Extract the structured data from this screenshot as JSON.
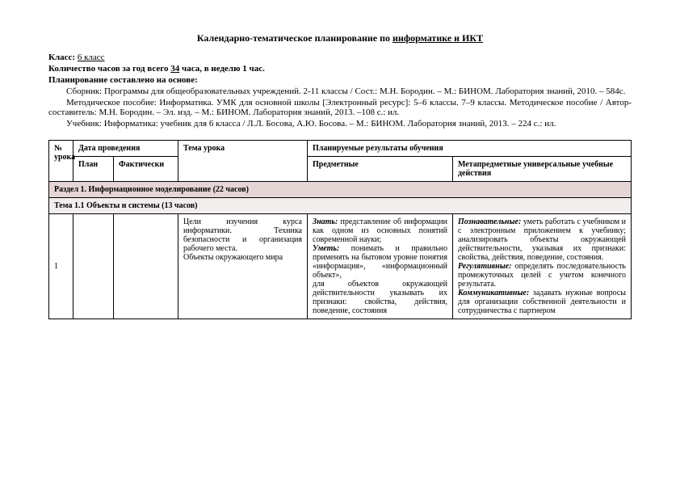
{
  "title_prefix": "Календарно-тематическое планирование по ",
  "title_underlined": "информатике и ИКТ",
  "class_label": "Класс:",
  "class_value": "6 класс",
  "hours_line_pre": "Количество часов за год всего ",
  "hours_value": "34",
  "hours_line_post": " часа, в неделю 1 час.",
  "basis_label": "Планирование составлено на основе:",
  "para1": "Сборник: Программы для общеобразовательных учреждений. 2-11 классы / Сост.: М.Н. Бородин. – М.: БИНОМ. Лаборатория знаний, 2010. – 584с.",
  "para2": "Методическое пособие: Информатика. УМК для основной школы [Электронный ресурс]: 5–6 классы. 7–9 классы. Методическое пособие / Автор-составитель: М.Н. Бородин. – Эл. изд. – М.: БИНОМ. Лаборатория знаний, 2013. –108 с.: ил.",
  "para3": "Учебник: Информатика: учебник для 6 класса / Л.Л. Босова, А.Ю. Босова. – М.: БИНОМ. Лаборатория знаний, 2013. – 224 с.: ил.",
  "headers": {
    "num": "№ урока",
    "date": "Дата проведения",
    "plan": "План",
    "fact": "Фактически",
    "topic": "Тема урока",
    "results": "Планируемые результаты обучения",
    "subj": "Предметные",
    "meta": "Метапредметные универсальные учебные действия"
  },
  "section1": "Раздел 1. Информационное моделирование (22 часов)",
  "subsection1": "Тема 1.1 Объекты и системы (13 часов)",
  "row1": {
    "num": "1",
    "plan": "",
    "fact": "",
    "topic": "Цели изучения курса информатики. Техника безопасности и организация рабочего места.\nОбъекты окружающего мира",
    "subj_know_label": "Знать:",
    "subj_know": " представление об информации как одном из основных понятий современной науки;",
    "subj_can_label": "Уметь:",
    "subj_can": " понимать и правильно применять на бытовом уровне понятия «информация», «информационный объект»,\nдля объектов окружающей действительности указывать их признаки: свойства, действия, поведение, состояния",
    "meta_cog_label": "Познавательные:",
    "meta_cog": " уметь работать с учебником и с электронным приложением к учебнику; анализировать объекты окружающей действительности, указывая их признаки: свойства, действия, поведение, состояния.",
    "meta_reg_label": "Регулятивные:",
    "meta_reg": " определять последовательность промежуточных целей с учетом конечного результата.",
    "meta_com_label": "Коммуникативные:",
    "meta_com": " задавать нужные вопросы для организации собственной деятельности и сотрудничества с партнером"
  },
  "colors": {
    "section_bg": "#e6d5d5",
    "subsection_bg": "#f3eeee",
    "border": "#000000",
    "text": "#000000",
    "background": "#ffffff"
  }
}
